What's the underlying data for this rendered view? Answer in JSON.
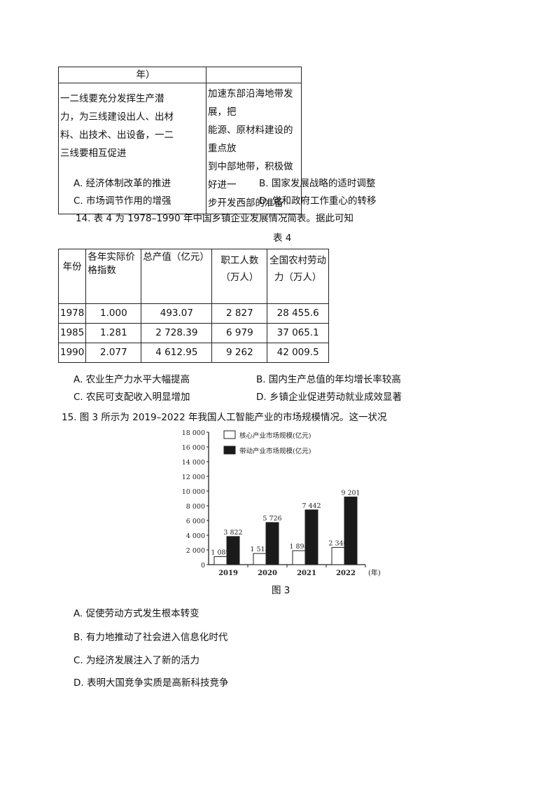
{
  "q13": {
    "table": {
      "header_fragment": "年）",
      "left_cell": [
        "一二线要充分发挥生产潜",
        "力，为三线建设出人、出材",
        "料、出技术、出设备，一二",
        "三线要相互促进"
      ],
      "right_cell": [
        "加速东部沿海地带发展，把",
        "能源、原材料建设的重点放",
        "到中部地带，积极做好进一",
        "步开发西部的准备"
      ]
    },
    "options": [
      "A. 经济体制改革的推进",
      "B. 国家发展战略的适时调整",
      "C. 市场调节作用的增强",
      "D. 党和政府工作重心的转移"
    ]
  },
  "q14": {
    "stem": "14.  表 4 为 1978–1990 年中国乡镇企业发展情况简表。据此可知",
    "table_title": "表 4",
    "headers": [
      "年份",
      "各年实际价格指数",
      "总产值（亿元）",
      "职工人数（万人）",
      "全国农村劳动力（万人）"
    ],
    "rows": [
      [
        "1978",
        "1.000",
        "493.07",
        "2 827",
        "28 455.6"
      ],
      [
        "1985",
        "1.281",
        "2 728.39",
        "6 979",
        "37 065.1"
      ],
      [
        "1990",
        "2.077",
        "4 612.95",
        "9 262",
        "42 009.5"
      ]
    ],
    "options": [
      "A. 农业生产力水平大幅提高",
      "B. 国内生产总值的年均增长率较高",
      "C. 农民可支配收入明显增加",
      "D. 乡镇企业促进劳动就业成效显著"
    ]
  },
  "q15": {
    "stem": "15.  图 3 所示为 2019–2022 年我国人工智能产业的市场规模情况。这一状况",
    "figure_caption": "图 3",
    "options": [
      "A. 促使劳动方式发生根本转变",
      "B. 有力地推动了社会进入信息化时代",
      "C. 为经济发展注入了新的活力",
      "D. 表明大国竞争实质是高新科技竞争"
    ]
  },
  "chart_data": {
    "type": "bar",
    "categories": [
      "2019",
      "2020",
      "2021",
      "2022"
    ],
    "series": [
      {
        "name": "核心产业市场规模(亿元)",
        "values": [
          1089,
          1513,
          1898,
          2340
        ],
        "labels": [
          "1 089",
          "1 513",
          "1 898",
          "2 340"
        ],
        "color": "#ffffff"
      },
      {
        "name": "带动产业市场规模(亿元)",
        "values": [
          3822,
          5726,
          7442,
          9201
        ],
        "labels": [
          "3 822",
          "5 726",
          "7 442",
          "9 201"
        ],
        "color": "#1a1a1a"
      }
    ],
    "xlabel": "(年)",
    "ylim": [
      0,
      18000
    ],
    "yticks": [
      "0",
      "2 000",
      "4 000",
      "6 000",
      "8 000",
      "10 000",
      "12 000",
      "14 000",
      "16 000",
      "18 000"
    ],
    "legend": "top"
  }
}
